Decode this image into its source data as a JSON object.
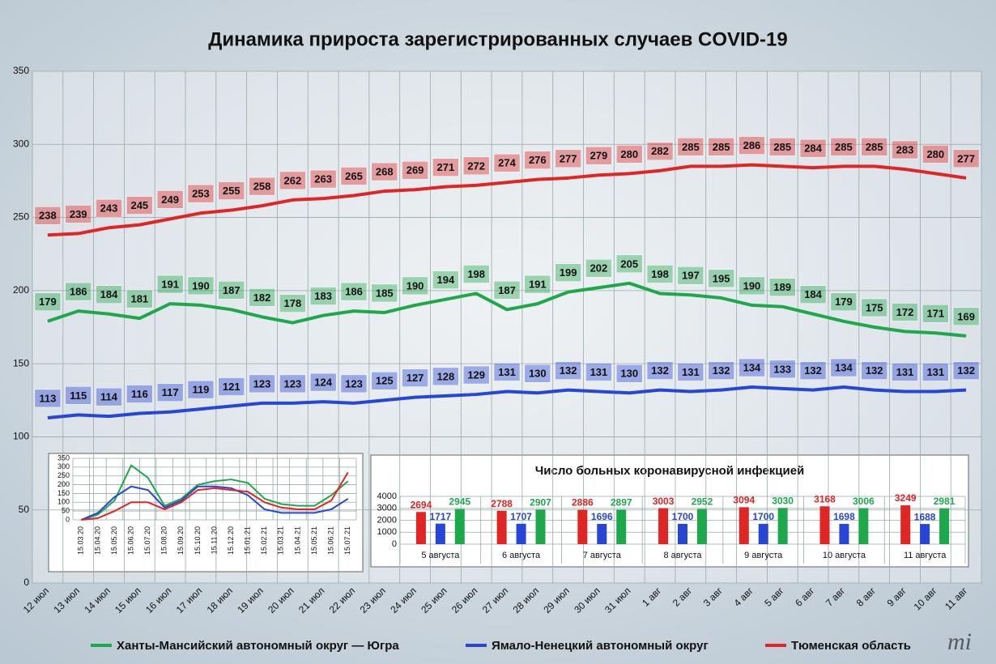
{
  "chart_data": [
    {
      "type": "line",
      "title": "Динамика прироста зарегистрированных случаев COVID-19",
      "categories": [
        "12 июл",
        "13 июл",
        "14 июл",
        "15 июл",
        "16 июл",
        "17 июл",
        "18 июл",
        "19 июл",
        "20 июл",
        "21 июл",
        "22 июл",
        "23 июл",
        "24 июл",
        "25 июл",
        "26 июл",
        "27 июл",
        "28 июл",
        "29 июл",
        "30 июл",
        "31 июл",
        "1 авг",
        "2 авг",
        "3 авг",
        "4 авг",
        "5 авг",
        "6 авг",
        "7 авг",
        "8 авг",
        "9 авг",
        "10 авг",
        "11 авг"
      ],
      "series": [
        {
          "name": "Ханты-Мансийский автономный округ — Югра",
          "color": "#1ea84c",
          "values": [
            179,
            186,
            184,
            181,
            191,
            190,
            187,
            182,
            178,
            183,
            186,
            185,
            190,
            194,
            198,
            187,
            191,
            199,
            202,
            205,
            198,
            197,
            195,
            190,
            189,
            184,
            179,
            175,
            172,
            171,
            169
          ]
        },
        {
          "name": "Ямало-Ненецкий автономный округ",
          "color": "#2746d6",
          "values": [
            113,
            115,
            114,
            116,
            117,
            119,
            121,
            123,
            123,
            124,
            123,
            125,
            127,
            128,
            129,
            131,
            130,
            132,
            131,
            130,
            132,
            131,
            132,
            134,
            133,
            132,
            134,
            132,
            131,
            131,
            132
          ]
        },
        {
          "name": "Тюменская область",
          "color": "#e02525",
          "values": [
            238,
            239,
            243,
            245,
            249,
            253,
            255,
            258,
            262,
            263,
            265,
            268,
            269,
            271,
            272,
            274,
            276,
            277,
            279,
            280,
            282,
            285,
            285,
            286,
            285,
            284,
            285,
            285,
            283,
            280,
            277
          ]
        }
      ],
      "ylim": [
        0,
        350
      ],
      "yticks": [
        0,
        50,
        100,
        150,
        200,
        250,
        300,
        350
      ],
      "grid": true,
      "data_labels": true,
      "legend": "bottom"
    },
    {
      "type": "line",
      "categories": [
        "15.03.20",
        "15.04.20",
        "15.05.20",
        "15.06.20",
        "15.07.20",
        "15.08.20",
        "15.09.20",
        "15.10.20",
        "15.11.20",
        "15.12.20",
        "15.01.21",
        "15.02.21",
        "15.03.21",
        "15.04.21",
        "15.05.21",
        "15.06.21",
        "15.07.21"
      ],
      "series": [
        {
          "color": "#1ea84c",
          "values": [
            0,
            30,
            110,
            310,
            240,
            80,
            120,
            200,
            220,
            230,
            210,
            120,
            90,
            80,
            80,
            140,
            220
          ]
        },
        {
          "color": "#2746d6",
          "values": [
            0,
            40,
            130,
            190,
            170,
            70,
            110,
            190,
            190,
            180,
            140,
            60,
            40,
            40,
            40,
            60,
            120
          ]
        },
        {
          "color": "#e02525",
          "values": [
            0,
            10,
            50,
            100,
            100,
            60,
            100,
            170,
            180,
            170,
            160,
            100,
            70,
            60,
            60,
            110,
            270
          ]
        }
      ],
      "ylim": [
        0,
        350
      ],
      "yticks": [
        0,
        50,
        100,
        150,
        200,
        250,
        300,
        350
      ],
      "grid": true
    },
    {
      "type": "bar",
      "title": "Число больных коронавирусной инфекцией",
      "categories": [
        "5 августа",
        "6 августа",
        "7 августа",
        "8 августа",
        "9 августа",
        "10 августа",
        "11 августа"
      ],
      "series": [
        {
          "color": "#e02525",
          "values": [
            2694,
            2788,
            2886,
            3003,
            3094,
            3168,
            3249
          ]
        },
        {
          "color": "#2746d6",
          "values": [
            1717,
            1707,
            1696,
            1700,
            1700,
            1698,
            1688
          ]
        },
        {
          "color": "#1ea84c",
          "values": [
            2945,
            2907,
            2897,
            2952,
            3030,
            3006,
            2981
          ]
        }
      ],
      "ylim": [
        0,
        4000
      ],
      "yticks": [
        0,
        1000,
        2000,
        3000,
        4000
      ],
      "grid": true,
      "data_labels": true
    }
  ]
}
